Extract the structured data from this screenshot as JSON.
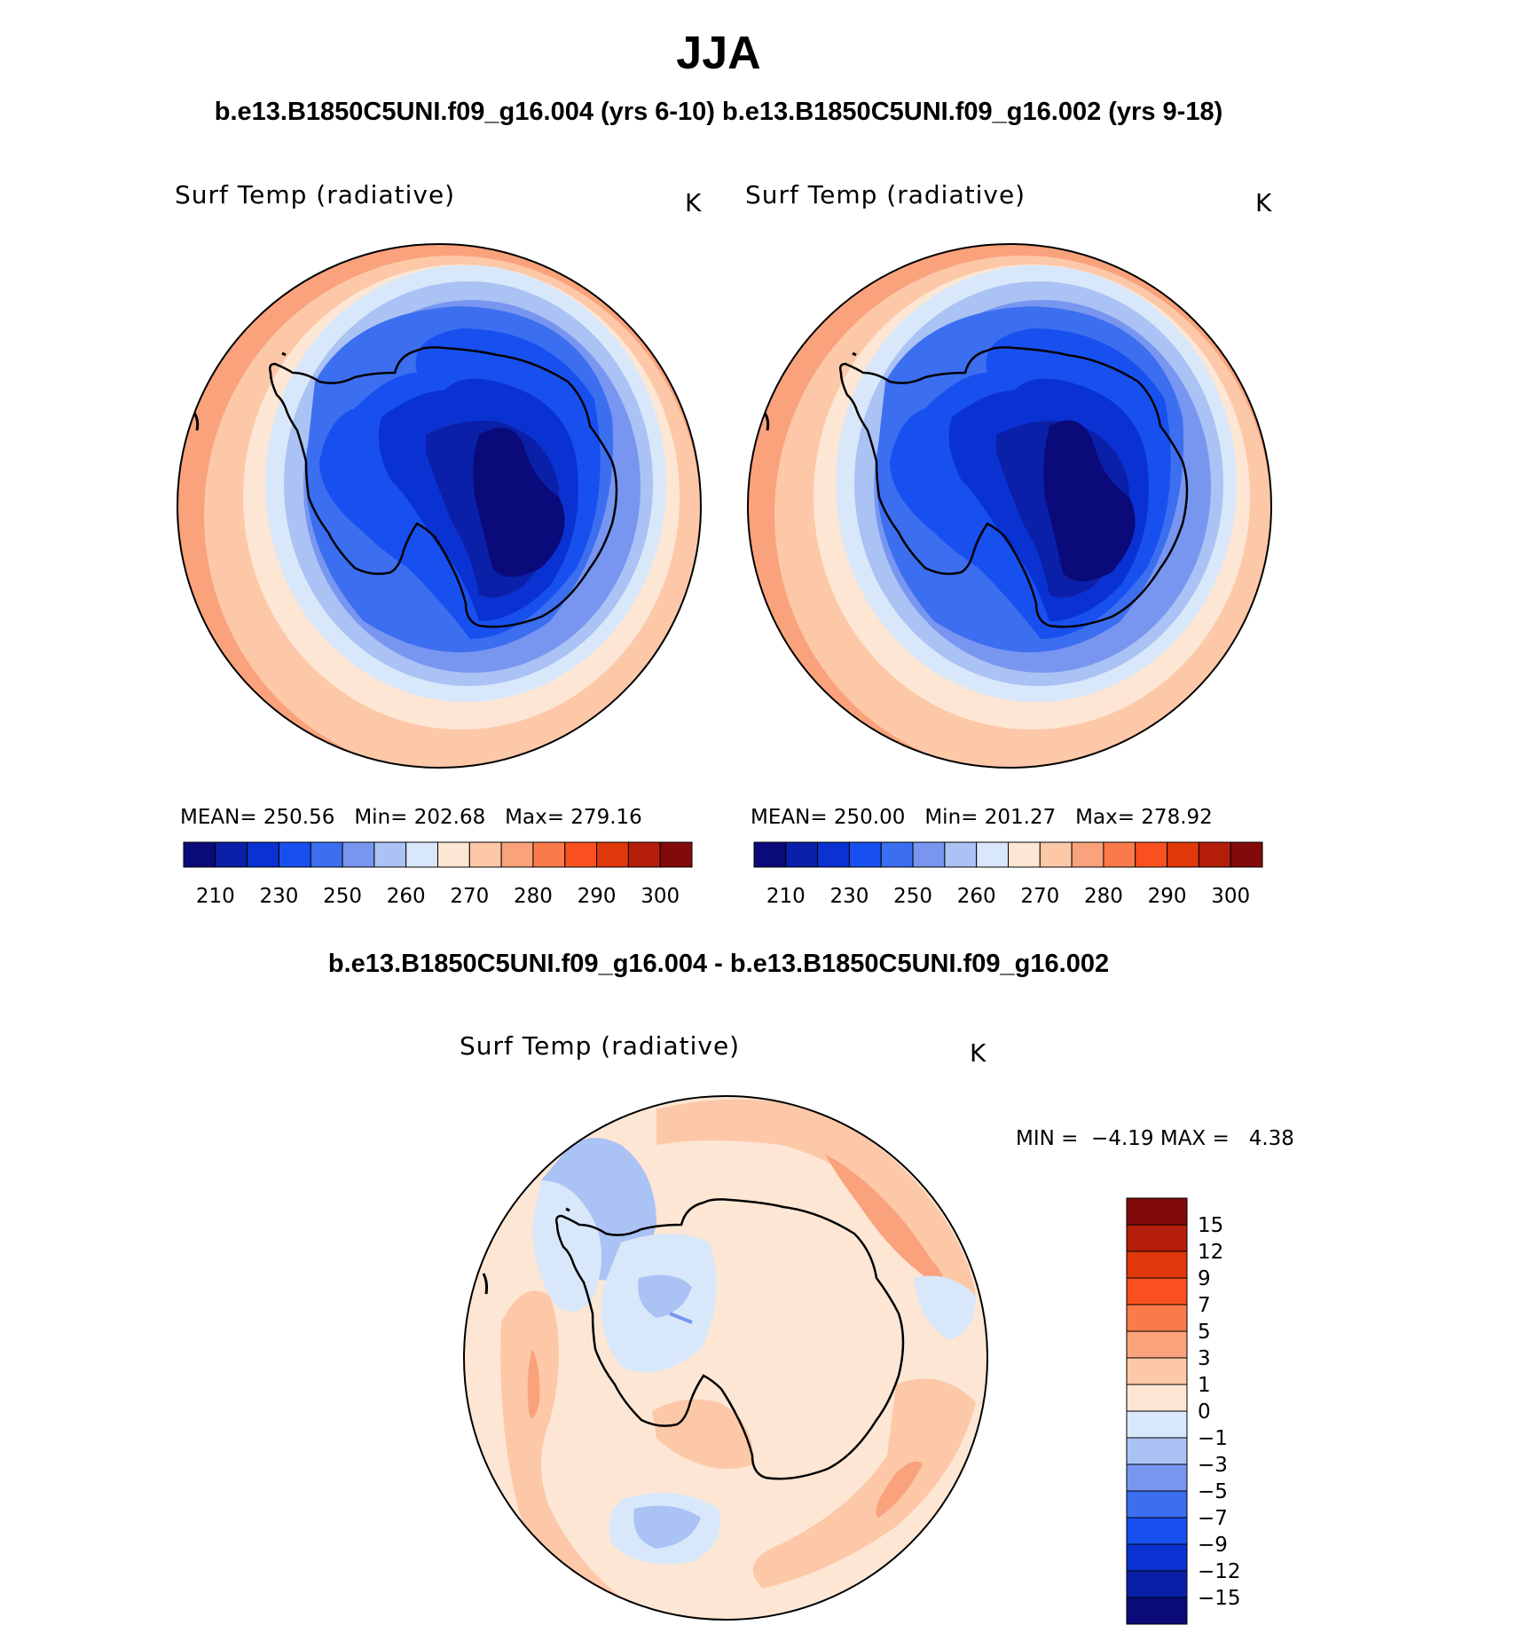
{
  "title": "JJA",
  "subtitle": "b.e13.B1850C5UNI.f09_g16.004 (yrs 6-10) b.e13.B1850C5UNI.f09_g16.002 (yrs 9-18)",
  "diff_title": "b.e13.B1850C5UNI.f09_g16.004 - b.e13.B1850C5UNI.f09_g16.002",
  "panels": [
    {
      "var_label": "Surf Temp (radiative)",
      "units": "K",
      "stats": {
        "mean_label": "MEAN=",
        "mean": "250.56",
        "min_label": "Min=",
        "min": "202.68",
        "max_label": "Max=",
        "max": "279.16"
      }
    },
    {
      "var_label": "Surf Temp (radiative)",
      "units": "K",
      "stats": {
        "mean_label": "MEAN=",
        "mean": "250.00",
        "min_label": "Min=",
        "min": "201.27",
        "max_label": "Max=",
        "max": "278.92"
      }
    },
    {
      "var_label": "Surf Temp (radiative)",
      "units": "K",
      "stats": {
        "min_label": "MIN =",
        "min": "−4.19",
        "max_label": "MAX =",
        "max": "4.38"
      }
    }
  ],
  "chart_data": [
    {
      "type": "heatmap",
      "projection": "south polar stereographic",
      "title": "Surf Temp (radiative)",
      "units": "K",
      "mean": 250.56,
      "min": 202.68,
      "max": 279.16,
      "colorbar_tick_labels": [
        "210",
        "230",
        "250",
        "260",
        "270",
        "280",
        "290",
        "300"
      ],
      "colorbar_colors": [
        "#0a0a7a",
        "#0a20a8",
        "#0a32d2",
        "#1850f0",
        "#3c6ef0",
        "#7896f0",
        "#aac2f4",
        "#d8e8fa",
        "#fde6d4",
        "#fcc8a8",
        "#f9a27c",
        "#fb7a4a",
        "#fa5020",
        "#e0380a",
        "#b41e0a",
        "#820a0a"
      ]
    },
    {
      "type": "heatmap",
      "projection": "south polar stereographic",
      "title": "Surf Temp (radiative)",
      "units": "K",
      "mean": 250.0,
      "min": 201.27,
      "max": 278.92,
      "colorbar_tick_labels": [
        "210",
        "230",
        "250",
        "260",
        "270",
        "280",
        "290",
        "300"
      ],
      "colorbar_colors": [
        "#0a0a7a",
        "#0a20a8",
        "#0a32d2",
        "#1850f0",
        "#3c6ef0",
        "#7896f0",
        "#aac2f4",
        "#d8e8fa",
        "#fde6d4",
        "#fcc8a8",
        "#f9a27c",
        "#fb7a4a",
        "#fa5020",
        "#e0380a",
        "#b41e0a",
        "#820a0a"
      ]
    },
    {
      "type": "heatmap",
      "projection": "south polar stereographic",
      "title": "Surf Temp (radiative)",
      "units": "K",
      "min": -4.19,
      "max": 4.38,
      "colorbar_tick_labels": [
        "15",
        "12",
        "9",
        "7",
        "5",
        "3",
        "1",
        "0",
        "−1",
        "−3",
        "−5",
        "−7",
        "−9",
        "−12",
        "−15"
      ],
      "colorbar_colors": [
        "#820a0a",
        "#b41e0a",
        "#e0380a",
        "#fa5020",
        "#fb7a4a",
        "#f9a27c",
        "#fcc8a8",
        "#fde6d4",
        "#d8e8fa",
        "#aac2f4",
        "#7896f0",
        "#3c6ef0",
        "#1850f0",
        "#0a32d2",
        "#0a20a8",
        "#0a0a7a"
      ]
    }
  ]
}
